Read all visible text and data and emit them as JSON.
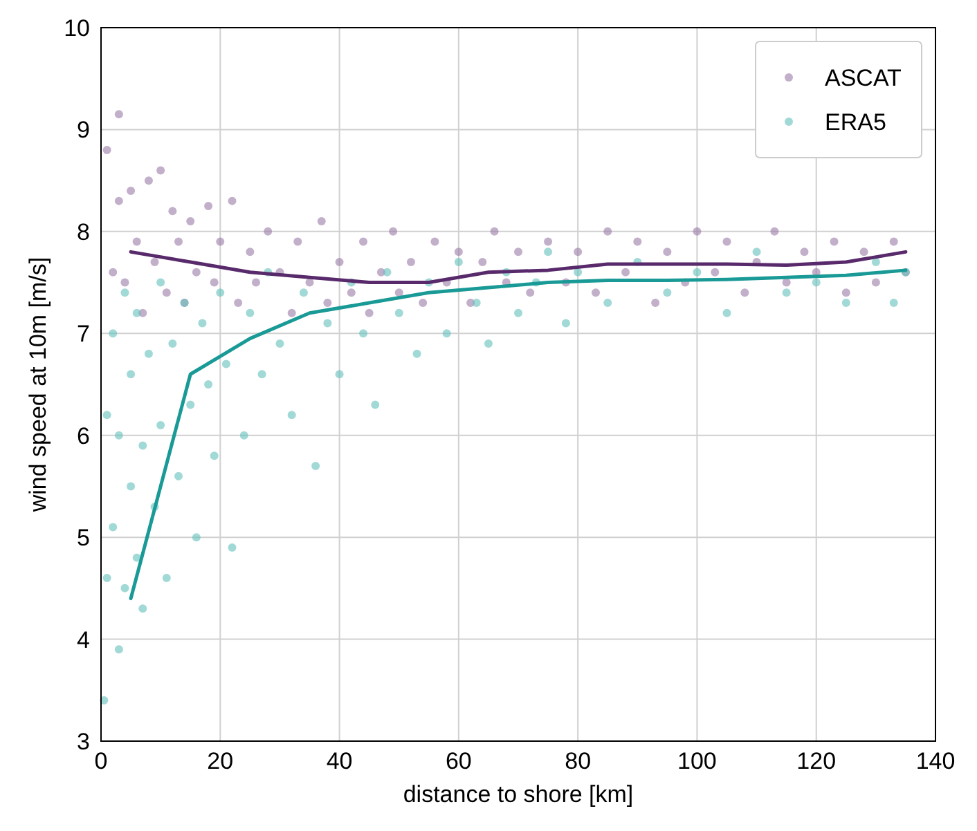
{
  "chart_data": {
    "type": "scatter",
    "xlabel": "distance to shore [km]",
    "ylabel": "wind speed at 10m [m/s]",
    "xlim": [
      0,
      140
    ],
    "ylim": [
      3,
      10
    ],
    "xticks": [
      0,
      20,
      40,
      60,
      80,
      100,
      120,
      140
    ],
    "yticks": [
      3,
      4,
      5,
      6,
      7,
      8,
      9,
      10
    ],
    "grid": true,
    "legend": "top right",
    "marker": "circle",
    "series": [
      {
        "name": "ASCAT",
        "color": "#9a7aa6",
        "x": [
          1,
          2,
          3,
          3,
          4,
          5,
          6,
          7,
          8,
          9,
          10,
          11,
          12,
          13,
          14,
          15,
          16,
          18,
          19,
          20,
          22,
          23,
          25,
          26,
          28,
          30,
          32,
          33,
          35,
          37,
          38,
          40,
          42,
          44,
          45,
          47,
          49,
          50,
          52,
          54,
          56,
          58,
          60,
          62,
          64,
          66,
          68,
          70,
          72,
          75,
          78,
          80,
          83,
          85,
          88,
          90,
          93,
          95,
          98,
          100,
          103,
          105,
          108,
          110,
          113,
          115,
          118,
          120,
          123,
          125,
          128,
          130,
          133,
          135
        ],
        "values": [
          8.8,
          7.6,
          9.15,
          8.3,
          7.5,
          8.4,
          7.9,
          7.2,
          8.5,
          7.7,
          8.6,
          7.4,
          8.2,
          7.9,
          7.3,
          8.1,
          7.6,
          8.25,
          7.5,
          7.9,
          8.3,
          7.3,
          7.8,
          7.5,
          8.0,
          7.6,
          7.2,
          7.9,
          7.5,
          8.1,
          7.3,
          7.7,
          7.4,
          7.9,
          7.2,
          7.6,
          8.0,
          7.4,
          7.7,
          7.3,
          7.9,
          7.5,
          7.8,
          7.3,
          7.7,
          8.0,
          7.5,
          7.8,
          7.4,
          7.9,
          7.5,
          7.8,
          7.4,
          8.0,
          7.6,
          7.9,
          7.3,
          7.8,
          7.5,
          8.0,
          7.6,
          7.9,
          7.4,
          7.7,
          8.0,
          7.5,
          7.8,
          7.6,
          7.9,
          7.4,
          7.8,
          7.5,
          7.9,
          7.6
        ]
      },
      {
        "name": "ERA5",
        "color": "#62bfbb",
        "x": [
          0.5,
          1,
          1,
          2,
          2,
          3,
          3,
          4,
          4,
          5,
          5,
          6,
          6,
          7,
          7,
          8,
          9,
          10,
          10,
          11,
          12,
          13,
          14,
          15,
          16,
          17,
          18,
          19,
          20,
          21,
          22,
          24,
          25,
          27,
          28,
          30,
          32,
          34,
          36,
          38,
          40,
          42,
          44,
          46,
          48,
          50,
          53,
          55,
          58,
          60,
          63,
          65,
          68,
          70,
          73,
          75,
          78,
          80,
          85,
          90,
          95,
          100,
          105,
          110,
          115,
          120,
          125,
          130,
          133,
          135
        ],
        "values": [
          3.4,
          4.6,
          6.2,
          5.1,
          7.0,
          3.9,
          6.0,
          4.5,
          7.4,
          5.5,
          6.6,
          4.8,
          7.2,
          5.9,
          4.3,
          6.8,
          5.3,
          7.5,
          6.1,
          4.6,
          6.9,
          5.6,
          7.3,
          6.3,
          5.0,
          7.1,
          6.5,
          5.8,
          7.4,
          6.7,
          4.9,
          6.0,
          7.2,
          6.6,
          7.6,
          6.9,
          6.2,
          7.4,
          5.7,
          7.1,
          6.6,
          7.5,
          7.0,
          6.3,
          7.6,
          7.2,
          6.8,
          7.5,
          7.0,
          7.7,
          7.3,
          6.9,
          7.6,
          7.2,
          7.5,
          7.8,
          7.1,
          7.6,
          7.3,
          7.7,
          7.4,
          7.6,
          7.2,
          7.8,
          7.4,
          7.5,
          7.3,
          7.7,
          7.3,
          7.6
        ]
      },
      {
        "type": "line",
        "marker": "none",
        "color": "#582a6b",
        "x": [
          5,
          15,
          25,
          35,
          45,
          55,
          65,
          75,
          85,
          95,
          105,
          115,
          125,
          135
        ],
        "values": [
          7.8,
          7.7,
          7.6,
          7.55,
          7.5,
          7.5,
          7.6,
          7.62,
          7.68,
          7.68,
          7.68,
          7.67,
          7.7,
          7.8
        ]
      },
      {
        "type": "line",
        "marker": "none",
        "color": "#1a9a96",
        "x": [
          5,
          15,
          25,
          35,
          45,
          55,
          65,
          75,
          85,
          95,
          105,
          115,
          125,
          135
        ],
        "values": [
          4.4,
          6.6,
          6.95,
          7.2,
          7.3,
          7.4,
          7.45,
          7.5,
          7.52,
          7.52,
          7.53,
          7.55,
          7.57,
          7.62
        ]
      }
    ]
  }
}
